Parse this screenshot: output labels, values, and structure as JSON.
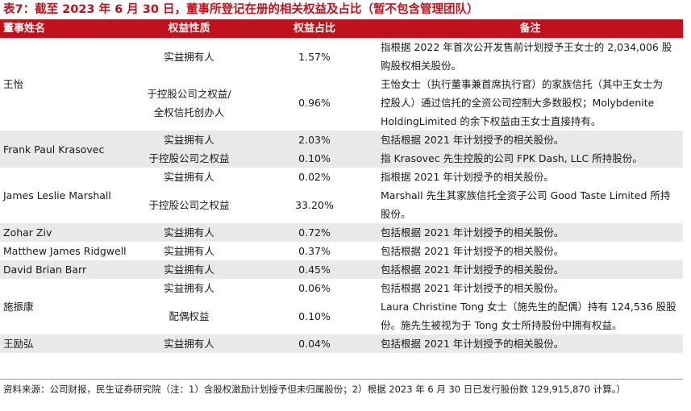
{
  "title": "表7：截至 2023 年 6 月 30 日，董事所登记在册的相关权益及占比（暂不包含管理团队）",
  "headers": [
    "董事姓名",
    "权益性质",
    "权益占比",
    "备注"
  ],
  "directors": [
    {
      "name": "王怡",
      "shade": false,
      "rows": [
        {
          "nature_lines": [
            "实益拥有人"
          ],
          "pct": "1.57%",
          "note_lines": [
            "指根据 2022 年首次公开发售前计划授予王女士的 2,034,006 股",
            "购股权相关股份。"
          ]
        },
        {
          "nature_lines": [
            "于控股公司之权益/",
            "全权信托创办人"
          ],
          "pct": "0.96%",
          "note_lines": [
            "王怡女士（执行董事兼首席执行官）的家族信托（其中王女士为",
            "控股人）通过信托的全资公司控制大多数股权；Molybdenite",
            "HoldingLimited 的余下权益由王女士直接持有。"
          ]
        }
      ]
    },
    {
      "name": "Frank Paul Krasovec",
      "shade": true,
      "rows": [
        {
          "nature_lines": [
            "实益拥有人"
          ],
          "pct": "2.03%",
          "note_lines": [
            "包括根据 2021 年计划授予的相关股份。"
          ]
        },
        {
          "nature_lines": [
            "于控股公司之权益"
          ],
          "pct": "0.10%",
          "note_lines": [
            "指 Krasovec 先生控股的公司 FPK Dash, LLC 所持股份。"
          ]
        }
      ]
    },
    {
      "name": "James Leslie Marshall",
      "shade": false,
      "rows": [
        {
          "nature_lines": [
            "实益拥有人"
          ],
          "pct": "0.02%",
          "note_lines": [
            "指根据 2021 年计划授予的相关股份。"
          ]
        },
        {
          "nature_lines": [
            "于控股公司之权益"
          ],
          "pct": "33.20%",
          "note_lines": [
            "Marshall 先生其家族信托全资子公司 Good Taste Limited 所持",
            "股份。"
          ]
        }
      ]
    },
    {
      "name": "Zohar Ziv",
      "shade": true,
      "rows": [
        {
          "nature_lines": [
            "实益拥有人"
          ],
          "pct": "0.72%",
          "note_lines": [
            "包括根据 2021 年计划授予的相关股份。"
          ]
        }
      ]
    },
    {
      "name": "Matthew James Ridgwell",
      "shade": false,
      "rows": [
        {
          "nature_lines": [
            "实益拥有人"
          ],
          "pct": "0.37%",
          "note_lines": [
            "包括根据 2021 年计划授予的相关股份。"
          ]
        }
      ]
    },
    {
      "name": "David Brian Barr",
      "shade": true,
      "rows": [
        {
          "nature_lines": [
            "实益拥有人"
          ],
          "pct": "0.45%",
          "note_lines": [
            "包括根据 2021 年计划授予的相关股份。"
          ]
        }
      ]
    },
    {
      "name": "施振康",
      "shade": false,
      "rows": [
        {
          "nature_lines": [
            "实益拥有人"
          ],
          "pct": "0.06%",
          "note_lines": [
            "包括根据 2021 年计划授予的相关股份。"
          ]
        },
        {
          "nature_lines": [
            "配偶权益"
          ],
          "pct": "0.10%",
          "note_lines": [
            "Laura Christine Tong 女士（施先生的配偶）持有 124,536 股股",
            "份。施先生被视为于 Tong 女士所持股份中拥有权益。"
          ]
        }
      ]
    },
    {
      "name": "王励弘",
      "shade": true,
      "rows": [
        {
          "nature_lines": [
            "实益拥有人"
          ],
          "pct": "0.04%",
          "note_lines": [
            "包括根据 2021 年计划授予的相关股份。"
          ]
        }
      ]
    }
  ],
  "footnote": "资料来源：公司财报，民生证券研究院（注：1）含股权激励计划授予但未归属股份；2）根据 2023 年 6 月 30 日已发行股份数 129,915,870 计算。）",
  "colors": {
    "header_bg": "#c0121c",
    "title": "#c0121c",
    "shade": "#e9e9e9"
  }
}
